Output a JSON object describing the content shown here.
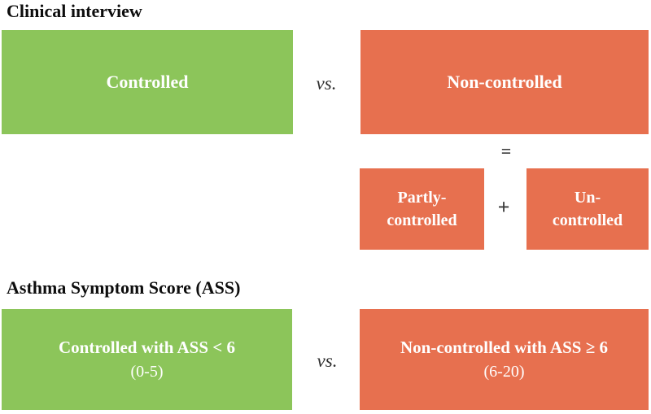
{
  "figure": {
    "background": "#ffffff",
    "colors": {
      "controlled_green": "#8cc55a",
      "non_controlled_orange": "#e7704f",
      "title_text": "#0d0d0d",
      "box_text": "#ffffff",
      "operator_text": "#3a3a3a"
    }
  },
  "sections": [
    {
      "title": "Clinical interview",
      "left_box": {
        "label": "Controlled"
      },
      "versus": "vs.",
      "right_box": {
        "label": "Non-controlled"
      },
      "equation": {
        "equals": "=",
        "plus": "+",
        "operand1": {
          "line1": "Partly-",
          "line2": "controlled"
        },
        "operand2": {
          "line1": "Un-",
          "line2": "controlled"
        }
      }
    },
    {
      "title": "Asthma Symptom Score (ASS)",
      "left_box": {
        "label": "Controlled with ASS < 6",
        "sub": "(0-5)"
      },
      "versus": "vs.",
      "right_box": {
        "label": "Non-controlled with ASS ≥ 6",
        "sub": "(6-20)"
      }
    }
  ]
}
